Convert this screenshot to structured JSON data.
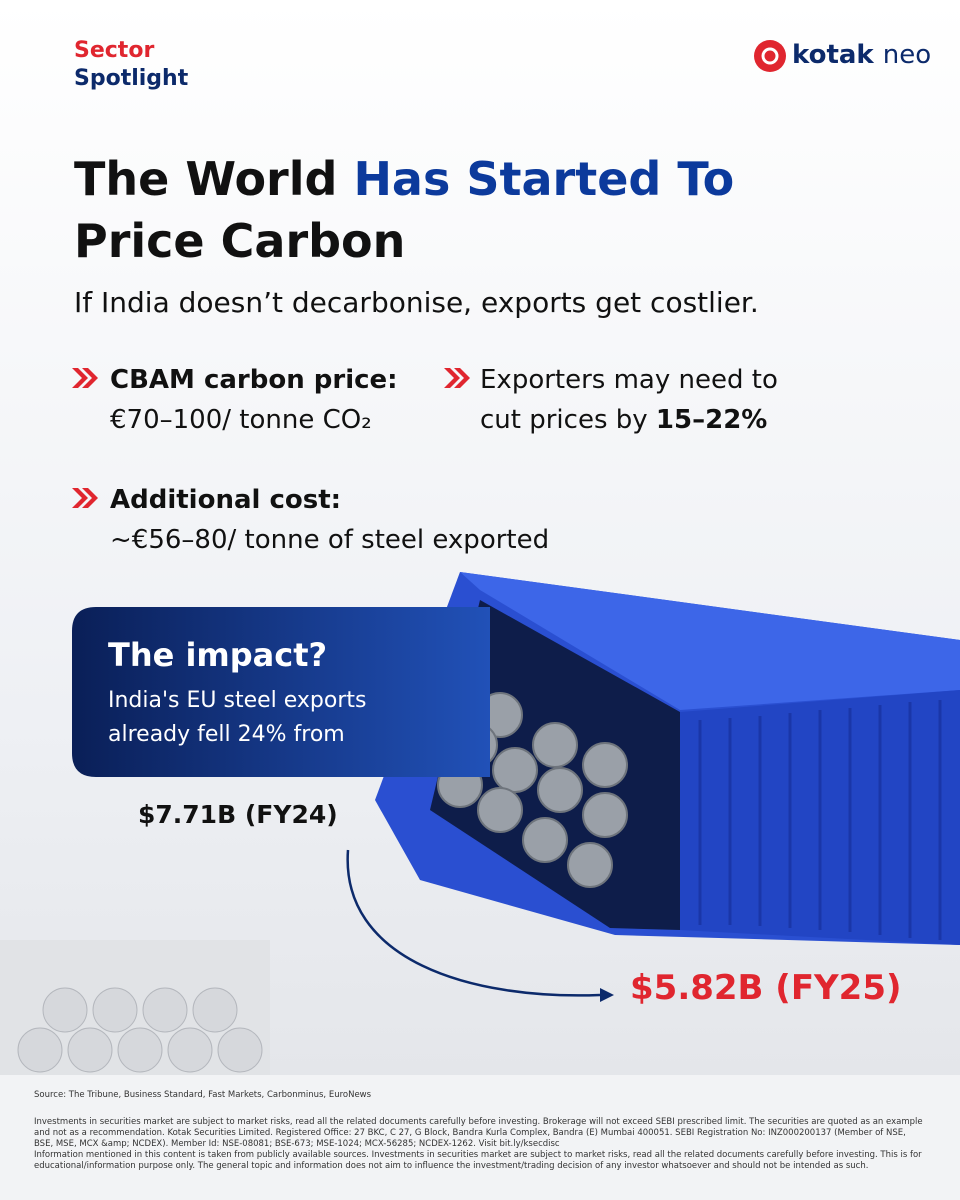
{
  "header": {
    "brand_top": "Sector",
    "brand_bottom": "Spotlight",
    "logo_word": "kotak",
    "logo_suffix": "neo"
  },
  "title": {
    "line1_dark": "The World",
    "line1_blue": "Has Started To",
    "line2": "Price Carbon"
  },
  "subtitle": "If India doesn’t decarbonise, exports get costlier.",
  "bullets": [
    {
      "heading": "CBAM carbon price:",
      "text": "€70–100/ tonne CO₂"
    },
    {
      "text": "Exporters may need to cut prices by",
      "emphasis": "15–22%"
    },
    {
      "heading": "Additional cost:",
      "text": "~€56–80/ tonne of steel exported"
    }
  ],
  "impact": {
    "heading": "The impact?",
    "text": "India's EU steel exports already fell 24% from",
    "from": "$7.71B (FY24)",
    "to": "$5.82B (FY25)"
  },
  "footer": {
    "source": "Source: The Tribune, Business Standard, Fast Markets, Carbonminus, EuroNews",
    "disclaimer": "Investments in securities market are subject to market risks, read all the related documents carefully before investing. Brokerage will not exceed SEBI prescribed limit. The securities are quoted as an example and not as a recommendation. Kotak Securities Limited. Registered Office: 27 BKC, C 27, G Block, Bandra Kurla Complex, Bandra (E) Mumbai 400051. SEBI Registration No: INZ000200137 (Member of NSE, BSE, MSE, MCX &amp; NCDEX). Member Id: NSE-08081; BSE-673; MSE-1024; MCX-56285; NCDEX-1262. Visit bit.ly/ksecdisc",
    "info": "Information mentioned in this content is taken from publicly available sources. Investments in securities market are subject to market risks, read all the related documents carefully before investing. This is for educational/information purpose only. The general topic and information does not aim to influence the investment/trading decision of any investor whatsoever and should not be intended as such."
  }
}
